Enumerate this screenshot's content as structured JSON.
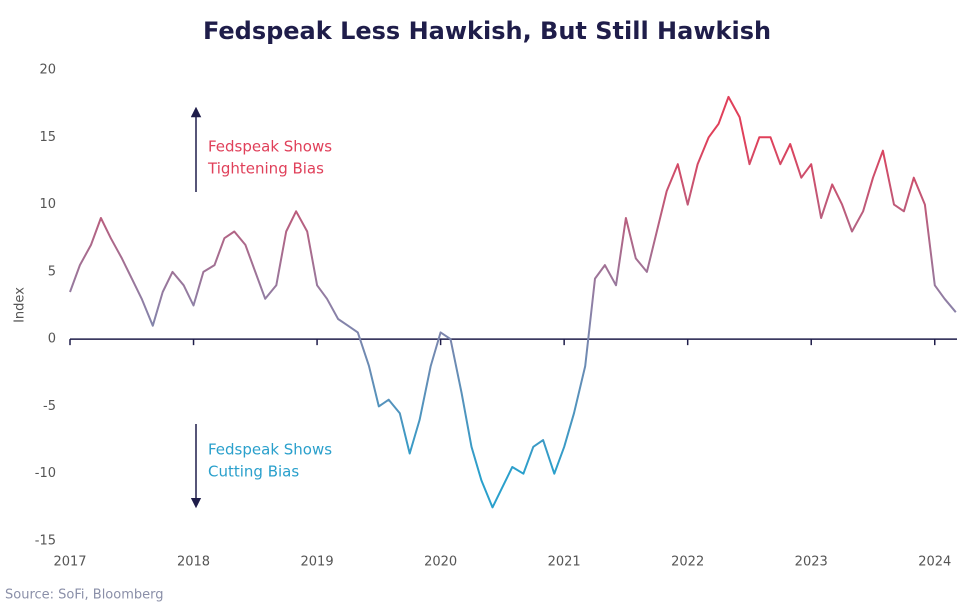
{
  "chart_data": {
    "type": "line",
    "title": "Fedspeak Less Hawkish, But Still Hawkish",
    "y_label": "Index",
    "source": "Source: SoFi, Bloomberg",
    "annotations": [
      {
        "text": [
          "Fedspeak Shows",
          "Tightening Bias"
        ],
        "color": "#e0405a"
      },
      {
        "text": [
          "Fedspeak Shows",
          "Cutting Bias"
        ],
        "color": "#2aa0cc"
      }
    ],
    "colors": [
      "#e0405a",
      "#8e80a6",
      "#2aa0cc"
    ],
    "x": [
      2017.0,
      2017.08,
      2017.17,
      2017.25,
      2017.33,
      2017.42,
      2017.5,
      2017.58,
      2017.67,
      2017.75,
      2017.83,
      2017.92,
      2018.0,
      2018.08,
      2018.17,
      2018.25,
      2018.33,
      2018.42,
      2018.5,
      2018.58,
      2018.67,
      2018.75,
      2018.83,
      2018.92,
      2019.0,
      2019.08,
      2019.17,
      2019.25,
      2019.33,
      2019.42,
      2019.5,
      2019.58,
      2019.67,
      2019.75,
      2019.83,
      2019.92,
      2020.0,
      2020.08,
      2020.17,
      2020.25,
      2020.33,
      2020.42,
      2020.5,
      2020.58,
      2020.67,
      2020.75,
      2020.83,
      2020.92,
      2021.0,
      2021.08,
      2021.17,
      2021.25,
      2021.33,
      2021.42,
      2021.5,
      2021.58,
      2021.67,
      2021.75,
      2021.83,
      2021.92,
      2022.0,
      2022.08,
      2022.17,
      2022.25,
      2022.33,
      2022.42,
      2022.5,
      2022.58,
      2022.67,
      2022.75,
      2022.83,
      2022.92,
      2023.0,
      2023.08,
      2023.17,
      2023.25,
      2023.33,
      2023.42,
      2023.5,
      2023.58,
      2023.67,
      2023.75,
      2023.83,
      2023.92,
      2024.0,
      2024.08,
      2024.17
    ],
    "values": [
      3.5,
      5.5,
      7,
      9,
      7.5,
      6,
      4.5,
      3,
      1,
      3.5,
      5,
      4,
      2.5,
      5,
      5.5,
      7.5,
      8,
      7,
      5,
      3,
      4,
      8,
      9.5,
      8,
      4,
      3,
      1.5,
      1,
      0.5,
      -2,
      -5,
      -4.5,
      -5.5,
      -8.5,
      -6,
      -2,
      0.5,
      0,
      -4,
      -8,
      -10.5,
      -12.5,
      -11,
      -9.5,
      -10,
      -8,
      -7.5,
      -10,
      -8,
      -5.5,
      -2,
      4.5,
      5.5,
      4,
      9,
      6,
      5,
      8,
      11,
      13,
      10,
      13,
      15,
      16,
      18,
      16.5,
      13,
      15,
      15,
      13,
      14.5,
      12,
      13,
      9,
      11.5,
      10,
      8,
      9.5,
      12,
      14,
      10,
      9.5,
      12,
      10,
      4,
      3,
      2
    ],
    "xlim": [
      2017,
      2024.18
    ],
    "xticks": [
      2017,
      2018,
      2019,
      2020,
      2021,
      2022,
      2023,
      2024
    ],
    "ylim": [
      -15,
      20
    ],
    "yticks": [
      -15,
      -10,
      -5,
      0,
      5,
      10,
      15,
      20
    ],
    "grid": false
  }
}
